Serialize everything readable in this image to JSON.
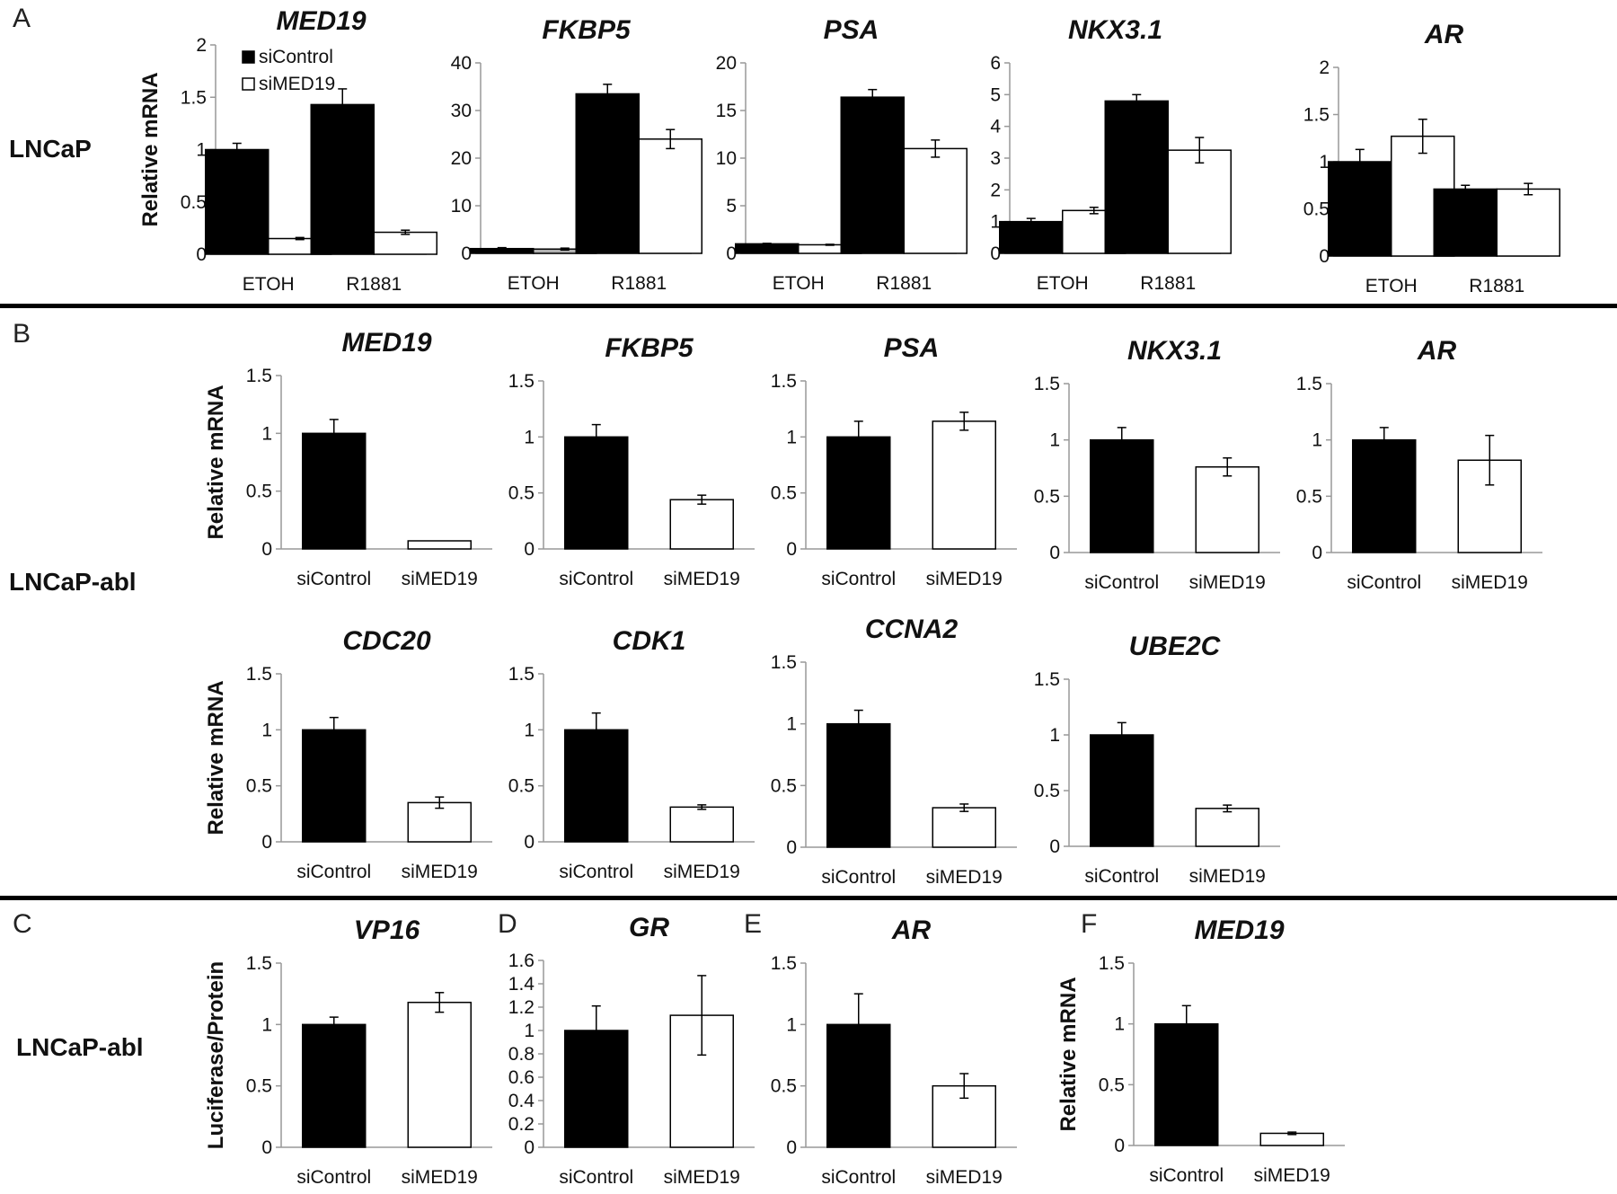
{
  "panel_letters": {
    "A": "A",
    "B": "B",
    "C": "C",
    "D": "D",
    "E": "E",
    "F": "F"
  },
  "row_labels": {
    "a": "LNCaP",
    "b": "LNCaP-abl",
    "c": "LNCaP-abl"
  },
  "colors": {
    "siControl": "#000000",
    "siMED19": "#ffffff",
    "gray_bar": "#b0b0b0"
  },
  "chart_data": [
    {
      "id": "A1",
      "type": "bar",
      "title": "MED19",
      "ylabel": "Relative mRNA",
      "categories": [
        "ETOH",
        "R1881"
      ],
      "ylim": [
        0,
        2
      ],
      "yticks": [
        "0",
        "0.5",
        "1",
        "1.5",
        "2"
      ],
      "legend": [
        {
          "label": "siControl",
          "color": "#000000"
        },
        {
          "label": "siMED19",
          "color": "#ffffff"
        }
      ],
      "series": [
        {
          "name": "siControl",
          "values": [
            1.0,
            1.43
          ],
          "errors": [
            0.06,
            0.15
          ]
        },
        {
          "name": "siMED19",
          "values": [
            0.15,
            0.21
          ],
          "errors": [
            0.01,
            0.02
          ]
        }
      ]
    },
    {
      "id": "A2",
      "type": "bar",
      "title": "FKBP5",
      "ylabel": "",
      "categories": [
        "ETOH",
        "R1881"
      ],
      "ylim": [
        0,
        40
      ],
      "yticks": [
        "0",
        "10",
        "20",
        "30",
        "40"
      ],
      "series": [
        {
          "name": "siControl",
          "values": [
            1.0,
            33.5
          ],
          "errors": [
            0.2,
            2.0
          ]
        },
        {
          "name": "siMED19",
          "values": [
            0.9,
            24.0
          ],
          "errors": [
            0.2,
            2.0
          ]
        }
      ]
    },
    {
      "id": "A3",
      "type": "bar",
      "title": "PSA",
      "ylabel": "",
      "categories": [
        "ETOH",
        "R1881"
      ],
      "ylim": [
        0,
        20
      ],
      "yticks": [
        "0",
        "5",
        "10",
        "15",
        "20"
      ],
      "series": [
        {
          "name": "siControl",
          "values": [
            1.0,
            16.4
          ],
          "errors": [
            0.05,
            0.8
          ]
        },
        {
          "name": "siMED19",
          "values": [
            0.9,
            11.0
          ],
          "errors": [
            0.05,
            0.9
          ]
        }
      ]
    },
    {
      "id": "A4",
      "type": "bar",
      "title": "NKX3.1",
      "ylabel": "",
      "categories": [
        "ETOH",
        "R1881"
      ],
      "ylim": [
        0,
        6
      ],
      "yticks": [
        "0",
        "1",
        "2",
        "3",
        "4",
        "5",
        "6"
      ],
      "series": [
        {
          "name": "siControl",
          "values": [
            1.0,
            4.8
          ],
          "errors": [
            0.1,
            0.2
          ]
        },
        {
          "name": "siMED19",
          "values": [
            1.35,
            3.25
          ],
          "errors": [
            0.1,
            0.4
          ]
        }
      ]
    },
    {
      "id": "A5",
      "type": "bar",
      "title": "AR",
      "ylabel": "",
      "categories": [
        "ETOH",
        "R1881"
      ],
      "ylim": [
        0,
        2
      ],
      "yticks": [
        "0",
        "0.5",
        "1",
        "1.5",
        "2"
      ],
      "series": [
        {
          "name": "siControl",
          "values": [
            1.0,
            0.71
          ],
          "errors": [
            0.13,
            0.04
          ]
        },
        {
          "name": "siMED19",
          "values": [
            1.27,
            0.71
          ],
          "errors": [
            0.18,
            0.06
          ]
        }
      ]
    },
    {
      "id": "B1",
      "type": "bar",
      "title": "MED19",
      "ylabel": "Relative mRNA",
      "categories": [
        "siControl",
        "siMED19"
      ],
      "ylim": [
        0,
        1.5
      ],
      "yticks": [
        "0",
        "0.5",
        "1",
        "1.5"
      ],
      "series": [
        {
          "name": "siControl",
          "values": [
            1.0,
            null
          ],
          "errors": [
            0.12,
            null
          ]
        },
        {
          "name": "siMED19",
          "values": [
            null,
            0.07
          ],
          "errors": [
            null,
            0.0
          ]
        }
      ]
    },
    {
      "id": "B2",
      "type": "bar",
      "title": "FKBP5",
      "ylabel": "",
      "categories": [
        "siControl",
        "siMED19"
      ],
      "ylim": [
        0,
        1.5
      ],
      "yticks": [
        "0",
        "0.5",
        "1",
        "1.5"
      ],
      "series": [
        {
          "name": "siControl",
          "values": [
            1.0,
            null
          ],
          "errors": [
            0.11,
            null
          ]
        },
        {
          "name": "siMED19",
          "values": [
            null,
            0.44
          ],
          "errors": [
            null,
            0.04
          ]
        }
      ]
    },
    {
      "id": "B3",
      "type": "bar",
      "title": "PSA",
      "ylabel": "",
      "categories": [
        "siControl",
        "siMED19"
      ],
      "ylim": [
        0,
        1.5
      ],
      "yticks": [
        "0",
        "0.5",
        "1",
        "1.5"
      ],
      "series": [
        {
          "name": "siControl",
          "values": [
            1.0,
            null
          ],
          "errors": [
            0.14,
            null
          ]
        },
        {
          "name": "siMED19",
          "values": [
            null,
            1.14
          ],
          "errors": [
            null,
            0.08
          ]
        }
      ]
    },
    {
      "id": "B4",
      "type": "bar",
      "title": "NKX3.1",
      "ylabel": "",
      "categories": [
        "siControl",
        "siMED19"
      ],
      "ylim": [
        0,
        1.5
      ],
      "yticks": [
        "0",
        "0.5",
        "1",
        "1.5"
      ],
      "series": [
        {
          "name": "siControl",
          "values": [
            1.0,
            null
          ],
          "errors": [
            0.11,
            null
          ]
        },
        {
          "name": "siMED19",
          "values": [
            null,
            0.76
          ],
          "errors": [
            null,
            0.08
          ]
        }
      ]
    },
    {
      "id": "B5",
      "type": "bar",
      "title": "AR",
      "ylabel": "",
      "categories": [
        "siControl",
        "siMED19"
      ],
      "ylim": [
        0,
        1.5
      ],
      "yticks": [
        "0",
        "0.5",
        "1",
        "1.5"
      ],
      "series": [
        {
          "name": "siControl",
          "values": [
            1.0,
            null
          ],
          "errors": [
            0.11,
            null
          ]
        },
        {
          "name": "siMED19",
          "values": [
            null,
            0.82
          ],
          "errors": [
            null,
            0.22
          ]
        }
      ]
    },
    {
      "id": "B6",
      "type": "bar",
      "title": "CDC20",
      "ylabel": "Relative mRNA",
      "categories": [
        "siControl",
        "siMED19"
      ],
      "ylim": [
        0,
        1.5
      ],
      "yticks": [
        "0",
        "0.5",
        "1",
        "1.5"
      ],
      "series": [
        {
          "name": "siControl",
          "values": [
            1.0,
            null
          ],
          "errors": [
            0.11,
            null
          ]
        },
        {
          "name": "siMED19",
          "values": [
            null,
            0.35
          ],
          "errors": [
            null,
            0.05
          ]
        }
      ]
    },
    {
      "id": "B7",
      "type": "bar",
      "title": "CDK1",
      "ylabel": "",
      "categories": [
        "siControl",
        "siMED19"
      ],
      "ylim": [
        0,
        1.5
      ],
      "yticks": [
        "0",
        "0.5",
        "1",
        "1.5"
      ],
      "series": [
        {
          "name": "siControl",
          "values": [
            1.0,
            null
          ],
          "errors": [
            0.15,
            null
          ]
        },
        {
          "name": "siMED19",
          "values": [
            null,
            0.31
          ],
          "errors": [
            null,
            0.02
          ]
        }
      ]
    },
    {
      "id": "B8",
      "type": "bar",
      "title": "CCNA2",
      "ylabel": "",
      "categories": [
        "siControl",
        "siMED19"
      ],
      "ylim": [
        0,
        1.5
      ],
      "yticks": [
        "0",
        "0.5",
        "1",
        "1.5"
      ],
      "series": [
        {
          "name": "siControl",
          "values": [
            1.0,
            null
          ],
          "errors": [
            0.11,
            null
          ]
        },
        {
          "name": "siMED19",
          "values": [
            null,
            0.32
          ],
          "errors": [
            null,
            0.03
          ]
        }
      ]
    },
    {
      "id": "B9",
      "type": "bar",
      "title": "UBE2C",
      "ylabel": "",
      "categories": [
        "siControl",
        "siMED19"
      ],
      "ylim": [
        0,
        1.5
      ],
      "yticks": [
        "0",
        "0.5",
        "1",
        "1.5"
      ],
      "series": [
        {
          "name": "siControl",
          "values": [
            1.0,
            null
          ],
          "errors": [
            0.11,
            null
          ]
        },
        {
          "name": "siMED19",
          "values": [
            null,
            0.34
          ],
          "errors": [
            null,
            0.03
          ]
        }
      ]
    },
    {
      "id": "C",
      "type": "bar",
      "title": "VP16",
      "ylabel": "Luciferase/Protein",
      "categories": [
        "siControl",
        "siMED19"
      ],
      "ylim": [
        0,
        1.5
      ],
      "yticks": [
        "0",
        "0.5",
        "1",
        "1.5"
      ],
      "series": [
        {
          "name": "siControl",
          "values": [
            1.0,
            null
          ],
          "errors": [
            0.06,
            null
          ]
        },
        {
          "name": "siMED19",
          "values": [
            null,
            1.18
          ],
          "errors": [
            null,
            0.08
          ]
        }
      ]
    },
    {
      "id": "D",
      "type": "bar",
      "title": "GR",
      "ylabel": "",
      "categories": [
        "siControl",
        "siMED19"
      ],
      "ylim": [
        0,
        1.6
      ],
      "yticks": [
        "0",
        "0.2",
        "0.4",
        "0.6",
        "0.8",
        "1",
        "1.2",
        "1.4",
        "1.6"
      ],
      "series": [
        {
          "name": "siControl",
          "values": [
            1.0,
            null
          ],
          "errors": [
            0.21,
            null
          ]
        },
        {
          "name": "siMED19",
          "values": [
            null,
            1.13
          ],
          "errors": [
            null,
            0.34
          ]
        }
      ]
    },
    {
      "id": "E",
      "type": "bar",
      "title": "AR",
      "ylabel": "",
      "categories": [
        "siControl",
        "siMED19"
      ],
      "ylim": [
        0,
        1.5
      ],
      "yticks": [
        "0",
        "0.5",
        "1",
        "1.5"
      ],
      "series": [
        {
          "name": "siControl",
          "values": [
            1.0,
            null
          ],
          "errors": [
            0.25,
            null
          ]
        },
        {
          "name": "siMED19",
          "values": [
            null,
            0.5
          ],
          "errors": [
            null,
            0.1
          ]
        }
      ]
    },
    {
      "id": "F",
      "type": "bar",
      "title": "MED19",
      "ylabel": "Relative mRNA",
      "categories": [
        "siControl",
        "siMED19"
      ],
      "ylim": [
        0,
        1.5
      ],
      "yticks": [
        "0",
        "0.5",
        "1",
        "1.5"
      ],
      "series": [
        {
          "name": "siControl",
          "values": [
            1.0,
            null
          ],
          "errors": [
            0.15,
            null
          ]
        },
        {
          "name": "siMED19",
          "values": [
            null,
            0.1
          ],
          "errors": [
            null,
            0.01
          ]
        }
      ]
    }
  ]
}
